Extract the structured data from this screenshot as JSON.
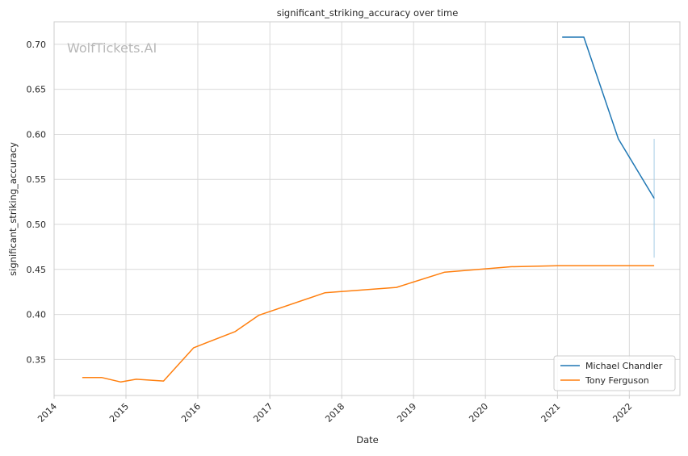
{
  "chart_data": {
    "type": "line",
    "title": "significant_striking_accuracy over time",
    "xlabel": "Date",
    "ylabel": "significant_striking_accuracy",
    "watermark": "WolfTickets.AI",
    "grid": true,
    "legend_position": "bottom-right",
    "xlim": [
      "2014-01-01",
      "2022-09-15"
    ],
    "ylim": [
      0.31,
      0.725
    ],
    "x_ticks": [
      "2014",
      "2015",
      "2016",
      "2017",
      "2018",
      "2019",
      "2020",
      "2021",
      "2022"
    ],
    "y_ticks": [
      "0.35",
      "0.40",
      "0.45",
      "0.50",
      "0.55",
      "0.60",
      "0.65",
      "0.70"
    ],
    "series": [
      {
        "name": "Michael Chandler",
        "color": "#1f77b4",
        "points": [
          [
            "2021-01-25",
            0.708
          ],
          [
            "2021-05-15",
            0.708
          ],
          [
            "2021-11-06",
            0.595
          ],
          [
            "2022-05-07",
            0.529
          ]
        ],
        "error_band": {
          "x": "2022-05-07",
          "low": 0.463,
          "high": 0.595,
          "color": "#a6cde6"
        }
      },
      {
        "name": "Tony Ferguson",
        "color": "#ff7f0e",
        "points": [
          [
            "2014-05-24",
            0.33
          ],
          [
            "2014-08-30",
            0.33
          ],
          [
            "2014-12-06",
            0.325
          ],
          [
            "2015-02-22",
            0.328
          ],
          [
            "2015-07-11",
            0.326
          ],
          [
            "2015-12-11",
            0.363
          ],
          [
            "2016-07-09",
            0.381
          ],
          [
            "2016-11-05",
            0.399
          ],
          [
            "2017-10-07",
            0.424
          ],
          [
            "2018-10-06",
            0.43
          ],
          [
            "2019-06-08",
            0.447
          ],
          [
            "2020-05-09",
            0.453
          ],
          [
            "2021-01-01",
            0.454
          ],
          [
            "2022-05-07",
            0.454
          ]
        ]
      }
    ]
  }
}
